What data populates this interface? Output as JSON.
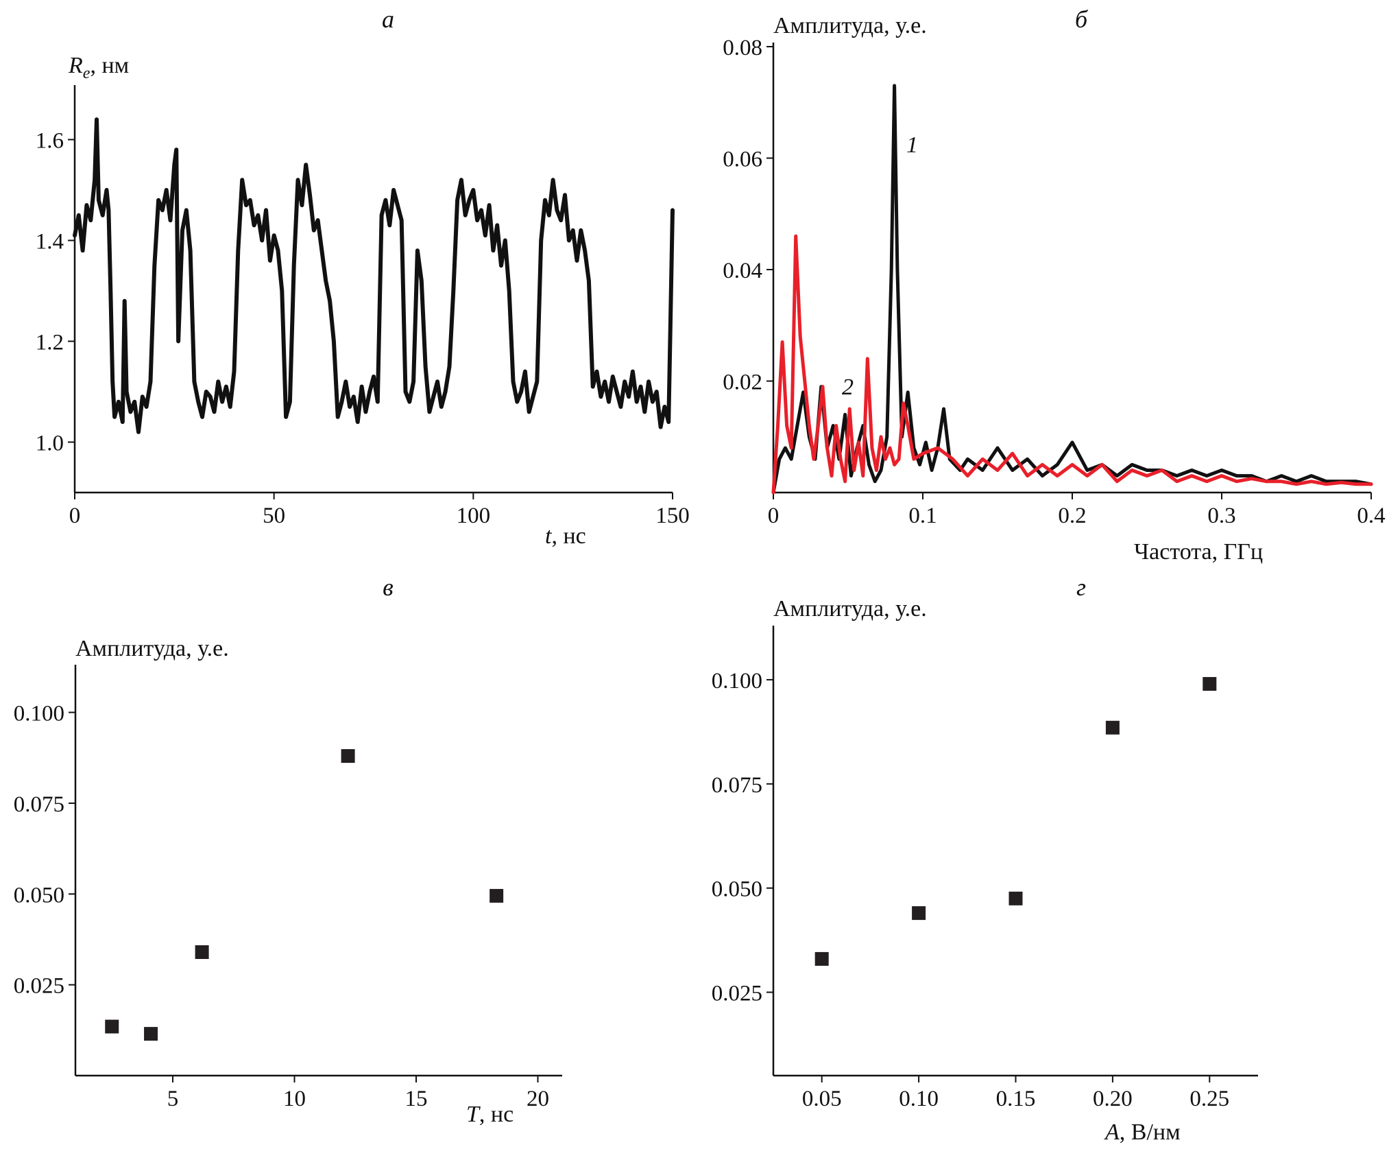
{
  "colors": {
    "ink": "#111111",
    "series1": "#111111",
    "series2": "#e8202a",
    "marker": "#231f20"
  },
  "chart_data": [
    {
      "panel": "а",
      "type": "line",
      "ylabel_var": "R",
      "ylabel_sub": "e",
      "ylabel_unit": ", нм",
      "xlabel_var": "t",
      "xlabel_unit": ", нс",
      "xlim": [
        0,
        150
      ],
      "ylim": [
        0.9,
        1.7
      ],
      "xticks": [
        0,
        50,
        100,
        150
      ],
      "yticks": [
        "1.0",
        "1.2",
        "1.4",
        "1.6"
      ],
      "series": [
        {
          "x": [
            0,
            1,
            2,
            3,
            4,
            5,
            5.5,
            6,
            7,
            8,
            8.5,
            9,
            9.5,
            10,
            11,
            12,
            12.5,
            13,
            14,
            15,
            16,
            17,
            18,
            19,
            20,
            21,
            22,
            23,
            24,
            25,
            25.5,
            26,
            27,
            28,
            29,
            30,
            31,
            32,
            33,
            34,
            35,
            36,
            37,
            38,
            39,
            40,
            41,
            42,
            43,
            44,
            45,
            46,
            47,
            48,
            49,
            50,
            51,
            52,
            53,
            54,
            55,
            56,
            57,
            58,
            59,
            60,
            61,
            62,
            63,
            64,
            65,
            66,
            67,
            68,
            69,
            70,
            71,
            72,
            73,
            74,
            75,
            76,
            77,
            78,
            79,
            80,
            81,
            82,
            83,
            84,
            85,
            86,
            87,
            88,
            89,
            90,
            91,
            92,
            93,
            94,
            95,
            96,
            97,
            98,
            99,
            100,
            101,
            102,
            103,
            104,
            105,
            106,
            107,
            108,
            109,
            110,
            111,
            112,
            113,
            114,
            115,
            116,
            117,
            118,
            119,
            120,
            121,
            122,
            123,
            124,
            125,
            126,
            127,
            128,
            129,
            130,
            131,
            132,
            133,
            134,
            135,
            136,
            137,
            138,
            139,
            140,
            141,
            142,
            143,
            144,
            145,
            146,
            147,
            148,
            149,
            150
          ],
          "y": [
            1.41,
            1.45,
            1.38,
            1.47,
            1.44,
            1.52,
            1.64,
            1.48,
            1.45,
            1.5,
            1.46,
            1.3,
            1.12,
            1.05,
            1.08,
            1.04,
            1.28,
            1.1,
            1.06,
            1.08,
            1.02,
            1.09,
            1.07,
            1.12,
            1.35,
            1.48,
            1.46,
            1.5,
            1.44,
            1.55,
            1.58,
            1.2,
            1.42,
            1.46,
            1.38,
            1.12,
            1.08,
            1.05,
            1.1,
            1.09,
            1.06,
            1.12,
            1.08,
            1.11,
            1.07,
            1.14,
            1.38,
            1.52,
            1.47,
            1.48,
            1.43,
            1.45,
            1.4,
            1.46,
            1.36,
            1.41,
            1.38,
            1.3,
            1.05,
            1.08,
            1.35,
            1.52,
            1.47,
            1.55,
            1.49,
            1.42,
            1.44,
            1.38,
            1.32,
            1.28,
            1.2,
            1.05,
            1.08,
            1.12,
            1.07,
            1.09,
            1.04,
            1.11,
            1.06,
            1.1,
            1.13,
            1.08,
            1.45,
            1.48,
            1.43,
            1.5,
            1.47,
            1.44,
            1.1,
            1.08,
            1.12,
            1.38,
            1.32,
            1.15,
            1.06,
            1.09,
            1.12,
            1.07,
            1.1,
            1.15,
            1.3,
            1.48,
            1.52,
            1.45,
            1.48,
            1.5,
            1.44,
            1.46,
            1.41,
            1.47,
            1.38,
            1.43,
            1.35,
            1.4,
            1.3,
            1.12,
            1.08,
            1.1,
            1.14,
            1.06,
            1.09,
            1.12,
            1.4,
            1.48,
            1.45,
            1.52,
            1.46,
            1.44,
            1.49,
            1.4,
            1.42,
            1.36,
            1.42,
            1.38,
            1.32,
            1.11,
            1.14,
            1.09,
            1.12,
            1.08,
            1.13,
            1.1,
            1.07,
            1.12,
            1.09,
            1.14,
            1.08,
            1.11,
            1.06,
            1.12,
            1.08,
            1.1,
            1.03,
            1.07,
            1.04,
            1.46
          ]
        }
      ]
    },
    {
      "panel": "б",
      "type": "line",
      "ylabel": "Амплитуда, у.е.",
      "xlabel": "Частота, ГГц",
      "xlim": [
        0,
        0.4
      ],
      "ylim": [
        0,
        0.08
      ],
      "xticks": [
        "0",
        "0.1",
        "0.2",
        "0.3",
        "0.4"
      ],
      "yticks": [
        "0.02",
        "0.04",
        "0.06",
        "0.08"
      ],
      "series": [
        {
          "label": "1",
          "x": [
            0,
            0.004,
            0.008,
            0.012,
            0.016,
            0.02,
            0.024,
            0.028,
            0.032,
            0.036,
            0.04,
            0.044,
            0.048,
            0.052,
            0.056,
            0.06,
            0.064,
            0.068,
            0.072,
            0.076,
            0.079,
            0.081,
            0.083,
            0.086,
            0.09,
            0.094,
            0.098,
            0.102,
            0.106,
            0.11,
            0.114,
            0.118,
            0.125,
            0.13,
            0.14,
            0.15,
            0.16,
            0.17,
            0.18,
            0.19,
            0.2,
            0.21,
            0.22,
            0.23,
            0.24,
            0.25,
            0.26,
            0.27,
            0.28,
            0.29,
            0.3,
            0.31,
            0.32,
            0.33,
            0.34,
            0.35,
            0.36,
            0.37,
            0.38,
            0.39,
            0.4
          ],
          "y": [
            0,
            0.006,
            0.008,
            0.006,
            0.012,
            0.018,
            0.01,
            0.006,
            0.019,
            0.008,
            0.012,
            0.006,
            0.014,
            0.003,
            0.008,
            0.012,
            0.005,
            0.002,
            0.004,
            0.01,
            0.04,
            0.073,
            0.04,
            0.01,
            0.018,
            0.008,
            0.005,
            0.009,
            0.004,
            0.008,
            0.015,
            0.006,
            0.004,
            0.006,
            0.004,
            0.008,
            0.004,
            0.006,
            0.003,
            0.005,
            0.009,
            0.004,
            0.005,
            0.003,
            0.005,
            0.004,
            0.004,
            0.003,
            0.004,
            0.003,
            0.004,
            0.003,
            0.003,
            0.002,
            0.003,
            0.002,
            0.003,
            0.002,
            0.002,
            0.002,
            0.0015
          ]
        },
        {
          "label": "2",
          "x": [
            0,
            0.003,
            0.006,
            0.009,
            0.012,
            0.015,
            0.018,
            0.021,
            0.024,
            0.027,
            0.03,
            0.033,
            0.036,
            0.039,
            0.042,
            0.045,
            0.048,
            0.051,
            0.054,
            0.057,
            0.06,
            0.063,
            0.066,
            0.069,
            0.072,
            0.075,
            0.078,
            0.081,
            0.084,
            0.087,
            0.09,
            0.094,
            0.1,
            0.11,
            0.12,
            0.13,
            0.14,
            0.15,
            0.16,
            0.17,
            0.18,
            0.19,
            0.2,
            0.21,
            0.22,
            0.23,
            0.24,
            0.25,
            0.26,
            0.27,
            0.28,
            0.29,
            0.3,
            0.31,
            0.32,
            0.33,
            0.34,
            0.35,
            0.36,
            0.37,
            0.38,
            0.39,
            0.4
          ],
          "y": [
            0,
            0.012,
            0.027,
            0.012,
            0.008,
            0.046,
            0.028,
            0.02,
            0.012,
            0.006,
            0.012,
            0.019,
            0.008,
            0.003,
            0.012,
            0.006,
            0.002,
            0.015,
            0.004,
            0.009,
            0.003,
            0.024,
            0.008,
            0.004,
            0.01,
            0.006,
            0.008,
            0.005,
            0.006,
            0.016,
            0.012,
            0.006,
            0.007,
            0.008,
            0.006,
            0.003,
            0.006,
            0.004,
            0.007,
            0.003,
            0.005,
            0.003,
            0.005,
            0.003,
            0.005,
            0.002,
            0.004,
            0.003,
            0.004,
            0.002,
            0.003,
            0.002,
            0.003,
            0.002,
            0.0025,
            0.002,
            0.002,
            0.0015,
            0.002,
            0.0015,
            0.0018,
            0.0015,
            0.0015
          ]
        }
      ]
    },
    {
      "panel": "в",
      "type": "scatter",
      "ylabel": "Амплитуда, у.е.",
      "xlabel_var": "T",
      "xlabel_unit": ", нс",
      "xlim": [
        1,
        21
      ],
      "ylim": [
        0,
        0.112
      ],
      "xticks": [
        5,
        10,
        15,
        20
      ],
      "yticks": [
        "0.025",
        "0.050",
        "0.075",
        "0.100"
      ],
      "series": [
        {
          "x": [
            2.5,
            4.1,
            6.2,
            12.2,
            18.3
          ],
          "y": [
            0.0135,
            0.0115,
            0.034,
            0.088,
            0.0495
          ]
        }
      ]
    },
    {
      "panel": "г",
      "type": "scatter",
      "ylabel": "Амплитуда, у.е.",
      "xlabel_var": "A",
      "xlabel_unit": ", В/нм",
      "xlim": [
        0.025,
        0.275
      ],
      "ylim": [
        0.005,
        0.112
      ],
      "xticks": [
        "0.05",
        "0.10",
        "0.15",
        "0.20",
        "0.25"
      ],
      "yticks": [
        "0.025",
        "0.050",
        "0.075",
        "0.100"
      ],
      "series": [
        {
          "x": [
            0.05,
            0.1,
            0.15,
            0.2,
            0.25
          ],
          "y": [
            0.033,
            0.044,
            0.0475,
            0.0885,
            0.099
          ]
        }
      ]
    }
  ]
}
